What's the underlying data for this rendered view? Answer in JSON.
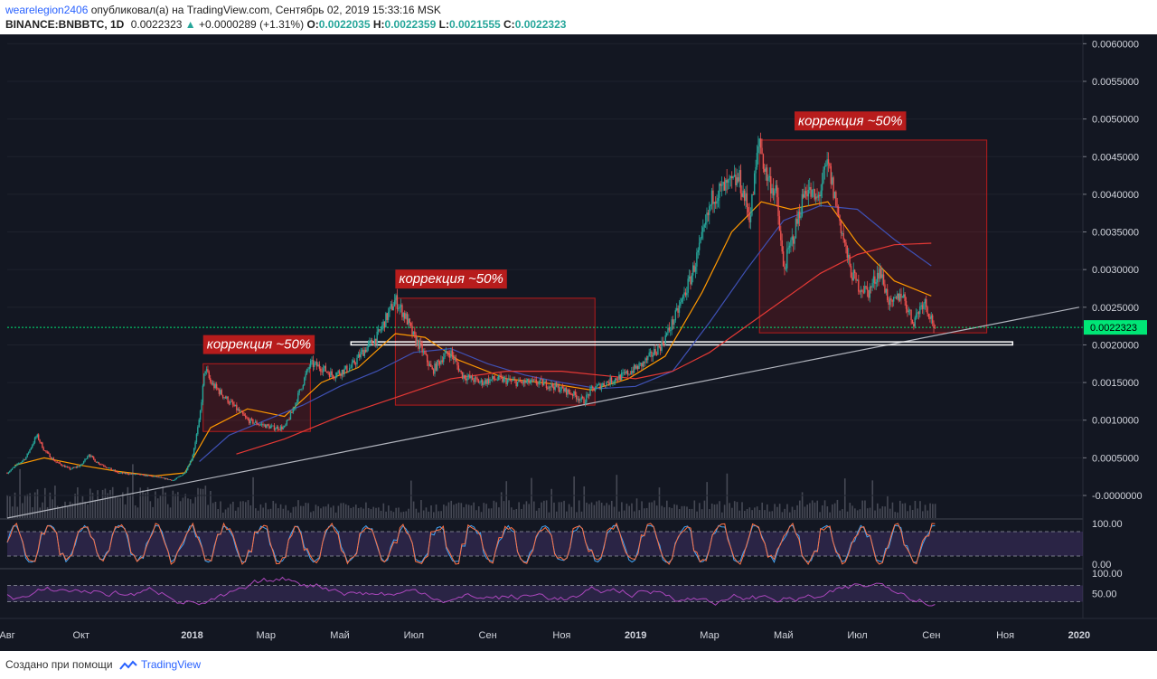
{
  "header": {
    "author": "wearelegion2406",
    "published_text": "опубликовал(а) на TradingView.com, Сентябрь 02, 2019 15:33:16 MSK",
    "symbol": "BINANCE:BNBBTC, 1D",
    "last": "0.0022323",
    "change": "+0.0000289 (+1.31%)",
    "o_label": "O:",
    "o": "0.0022035",
    "h_label": "H:",
    "h": "0.0022359",
    "l_label": "L:",
    "l": "0.0021555",
    "c_label": "C:",
    "c": "0.0022323"
  },
  "footer": {
    "made_with": "Создано при помощи",
    "brand": "TradingView"
  },
  "colors": {
    "background": "#131722",
    "bull": "#26a69a",
    "bear": "#ef5350",
    "ma_fast": "#ff9800",
    "ma_mid": "#3f51b5",
    "ma_slow": "#e53935",
    "current_price_tag": "#00e676",
    "correction_box": "#b71c1c",
    "oscillator": "#7e57c2"
  },
  "chart_data": {
    "type": "candlestick",
    "symbol": "BINANCE:BNBBTC",
    "interval": "1D",
    "price_axis": {
      "ylim": [
        -0.0003,
        0.0061
      ],
      "ticks": [
        "0.0060000",
        "0.0055000",
        "0.0050000",
        "0.0045000",
        "0.0040000",
        "0.0035000",
        "0.0030000",
        "0.0025000",
        "0.0020000",
        "0.0015000",
        "0.0010000",
        "0.0005000",
        "-0.0000000"
      ],
      "tick_values": [
        0.006,
        0.0055,
        0.005,
        0.0045,
        0.004,
        0.0035,
        0.003,
        0.0025,
        0.002,
        0.0015,
        0.001,
        0.0005,
        0.0
      ],
      "current_price": "0.0022323",
      "current_price_value": 0.0022323
    },
    "time_axis": {
      "labels": [
        "Авг",
        "Окт",
        "2018",
        "Мар",
        "Май",
        "Июл",
        "Сен",
        "Ноя",
        "2019",
        "Мар",
        "Май",
        "Июл",
        "Сен",
        "Ноя",
        "2020"
      ],
      "label_months": [
        0,
        2,
        5,
        7,
        9,
        11,
        13,
        15,
        17,
        19,
        21,
        23,
        25,
        27,
        29
      ],
      "xlim_months": [
        0,
        29.1
      ]
    },
    "price_path": [
      [
        0.0,
        0.0003
      ],
      [
        0.5,
        0.0005
      ],
      [
        0.8,
        0.0008
      ],
      [
        1.0,
        0.0006
      ],
      [
        1.3,
        0.00045
      ],
      [
        1.7,
        0.00035
      ],
      [
        2.0,
        0.0004
      ],
      [
        2.2,
        0.00055
      ],
      [
        2.4,
        0.00045
      ],
      [
        3.0,
        0.0003
      ],
      [
        3.5,
        0.00028
      ],
      [
        4.0,
        0.00025
      ],
      [
        4.5,
        0.0002
      ],
      [
        4.8,
        0.0003
      ],
      [
        5.0,
        0.0005
      ],
      [
        5.2,
        0.001
      ],
      [
        5.35,
        0.0017
      ],
      [
        5.5,
        0.0015
      ],
      [
        6.0,
        0.00125
      ],
      [
        6.5,
        0.001
      ],
      [
        6.8,
        0.00095
      ],
      [
        7.2,
        0.0009
      ],
      [
        7.5,
        0.0009
      ],
      [
        7.7,
        0.0011
      ],
      [
        8.0,
        0.0015
      ],
      [
        8.2,
        0.00175
      ],
      [
        8.5,
        0.0017
      ],
      [
        8.8,
        0.0016
      ],
      [
        9.3,
        0.0017
      ],
      [
        9.6,
        0.0019
      ],
      [
        10.0,
        0.0021
      ],
      [
        10.3,
        0.0024
      ],
      [
        10.5,
        0.0026
      ],
      [
        10.8,
        0.00235
      ],
      [
        11.0,
        0.0021
      ],
      [
        11.2,
        0.00195
      ],
      [
        11.5,
        0.00165
      ],
      [
        11.8,
        0.00185
      ],
      [
        12.0,
        0.0019
      ],
      [
        12.3,
        0.0016
      ],
      [
        12.8,
        0.0015
      ],
      [
        13.2,
        0.00155
      ],
      [
        13.8,
        0.0015
      ],
      [
        14.4,
        0.0015
      ],
      [
        14.8,
        0.00145
      ],
      [
        15.3,
        0.00135
      ],
      [
        15.6,
        0.00125
      ],
      [
        15.8,
        0.0014
      ],
      [
        16.2,
        0.0015
      ],
      [
        16.7,
        0.0016
      ],
      [
        17.2,
        0.00175
      ],
      [
        17.7,
        0.002
      ],
      [
        18.1,
        0.0024
      ],
      [
        18.5,
        0.0029
      ],
      [
        18.8,
        0.0034
      ],
      [
        19.1,
        0.004
      ],
      [
        19.5,
        0.0041
      ],
      [
        19.8,
        0.0042
      ],
      [
        20.1,
        0.0037
      ],
      [
        20.35,
        0.00475
      ],
      [
        20.5,
        0.0043
      ],
      [
        20.8,
        0.004
      ],
      [
        21.0,
        0.003
      ],
      [
        21.3,
        0.0035
      ],
      [
        21.6,
        0.0041
      ],
      [
        21.9,
        0.0039
      ],
      [
        22.2,
        0.0044
      ],
      [
        22.5,
        0.0037
      ],
      [
        22.8,
        0.003
      ],
      [
        23.0,
        0.0028
      ],
      [
        23.3,
        0.0027
      ],
      [
        23.6,
        0.003
      ],
      [
        23.9,
        0.0025
      ],
      [
        24.2,
        0.0027
      ],
      [
        24.5,
        0.0023
      ],
      [
        24.8,
        0.0026
      ],
      [
        25.1,
        0.00223
      ]
    ],
    "moving_averages": [
      {
        "color_key": "ma_fast",
        "points": [
          [
            0.2,
            0.0004
          ],
          [
            1,
            0.0005
          ],
          [
            2,
            0.0004
          ],
          [
            3,
            0.00032
          ],
          [
            4,
            0.00026
          ],
          [
            4.8,
            0.0003
          ],
          [
            5.5,
            0.0009
          ],
          [
            6.5,
            0.00115
          ],
          [
            7.5,
            0.00105
          ],
          [
            8.5,
            0.0015
          ],
          [
            9.5,
            0.0017
          ],
          [
            10.5,
            0.00215
          ],
          [
            11.3,
            0.0021
          ],
          [
            12.2,
            0.0018
          ],
          [
            13.5,
            0.00155
          ],
          [
            14.8,
            0.00148
          ],
          [
            15.8,
            0.0014
          ],
          [
            16.8,
            0.00155
          ],
          [
            17.8,
            0.00185
          ],
          [
            18.8,
            0.0027
          ],
          [
            19.6,
            0.0035
          ],
          [
            20.4,
            0.0039
          ],
          [
            21.2,
            0.0038
          ],
          [
            22.2,
            0.0039
          ],
          [
            23.0,
            0.00335
          ],
          [
            24.0,
            0.00285
          ],
          [
            25.0,
            0.00265
          ]
        ]
      },
      {
        "color_key": "ma_mid",
        "points": [
          [
            5.2,
            0.00045
          ],
          [
            6.0,
            0.0008
          ],
          [
            7.0,
            0.001
          ],
          [
            8.0,
            0.0012
          ],
          [
            9.0,
            0.00145
          ],
          [
            10.0,
            0.00165
          ],
          [
            11.0,
            0.0019
          ],
          [
            12.0,
            0.00195
          ],
          [
            13.0,
            0.00175
          ],
          [
            14.0,
            0.0016
          ],
          [
            15.0,
            0.0015
          ],
          [
            16.0,
            0.00142
          ],
          [
            17.0,
            0.00145
          ],
          [
            18.0,
            0.00165
          ],
          [
            19.0,
            0.0023
          ],
          [
            20.0,
            0.003
          ],
          [
            21.0,
            0.00365
          ],
          [
            22.0,
            0.00385
          ],
          [
            23.0,
            0.0038
          ],
          [
            24.0,
            0.0034
          ],
          [
            25.0,
            0.00305
          ]
        ]
      },
      {
        "color_key": "ma_slow",
        "points": [
          [
            6.2,
            0.00055
          ],
          [
            7.5,
            0.00075
          ],
          [
            9.0,
            0.00105
          ],
          [
            10.5,
            0.0013
          ],
          [
            12.0,
            0.00155
          ],
          [
            13.5,
            0.00165
          ],
          [
            15.0,
            0.00165
          ],
          [
            16.0,
            0.0016
          ],
          [
            17.0,
            0.00155
          ],
          [
            18.0,
            0.00165
          ],
          [
            19.0,
            0.0019
          ],
          [
            20.0,
            0.00225
          ],
          [
            21.0,
            0.0026
          ],
          [
            22.0,
            0.00295
          ],
          [
            23.0,
            0.0032
          ],
          [
            24.0,
            0.00333
          ],
          [
            25.0,
            0.00335
          ]
        ]
      }
    ],
    "trendline": {
      "points": [
        [
          0.0,
          -0.0003
        ],
        [
          29.0,
          0.0025
        ]
      ],
      "color": "#b2b5be"
    },
    "support_zone": {
      "x0": 9.3,
      "x1": 27.2,
      "y0": 0.002,
      "y1": 0.00204
    },
    "annotations": [
      {
        "text": "коррекция ~50%",
        "box": [
          5.3,
          8.2,
          0.00085,
          0.00175
        ],
        "label_at": [
          5.3,
          0.00195
        ]
      },
      {
        "text": "коррекция ~50%",
        "box": [
          10.5,
          15.9,
          0.0012,
          0.00262
        ],
        "label_at": [
          10.5,
          0.00282
        ]
      },
      {
        "text": "коррекция ~50%",
        "box": [
          20.35,
          26.5,
          0.00216,
          0.00472
        ],
        "label_at": [
          21.3,
          0.00492
        ]
      }
    ],
    "oscillator_1": {
      "ticks": [
        "100.00",
        "0.00"
      ],
      "tick_values": [
        100,
        0
      ],
      "bands": [
        80,
        20
      ]
    },
    "oscillator_2": {
      "ticks": [
        "100.00",
        "50.00"
      ],
      "tick_values": [
        100,
        50
      ],
      "bands": [
        70,
        30
      ]
    }
  }
}
